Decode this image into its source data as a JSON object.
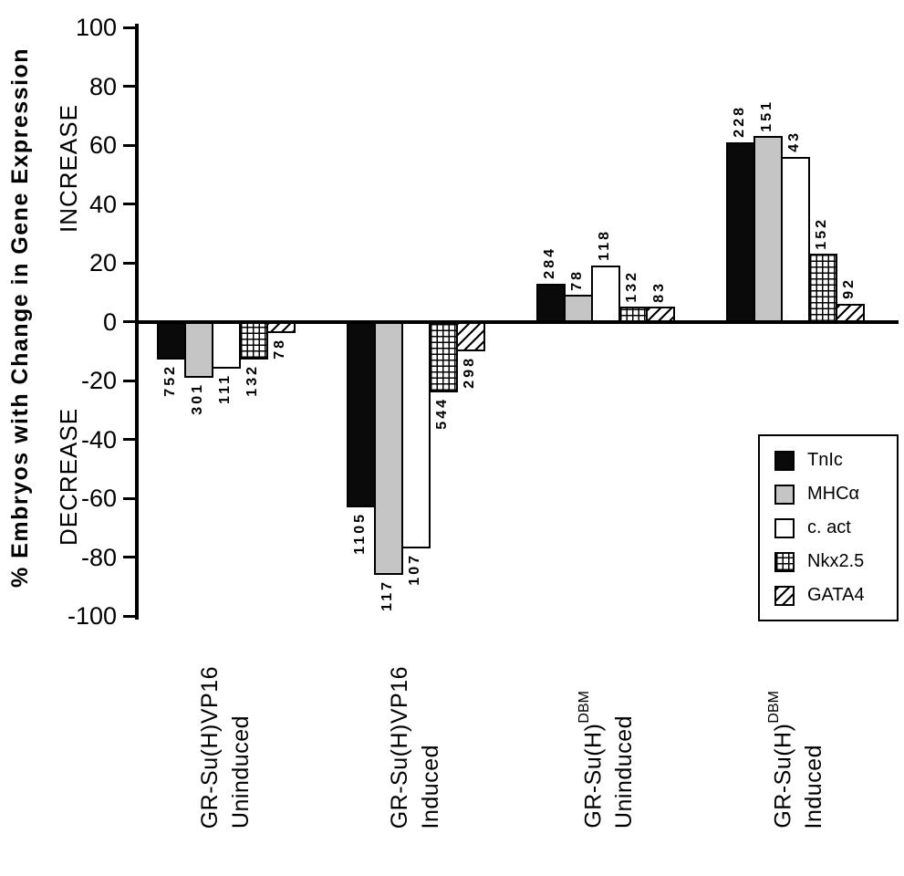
{
  "chart_data": {
    "type": "bar",
    "title": "",
    "ylabel": "% Embryos with Change in Gene Expression",
    "increase_label": "INCREASE",
    "decrease_label": "DECREASE",
    "xlabel": "",
    "ylim": [
      -100,
      100
    ],
    "y_ticks": [
      100,
      80,
      60,
      40,
      20,
      0,
      -20,
      -40,
      -60,
      -80,
      -100
    ],
    "grid": false,
    "legend_position": "middle-right",
    "series": [
      {
        "key": "tnic",
        "name": "TnIc",
        "fill": "black"
      },
      {
        "key": "mhc-alpha",
        "name": "MHCα",
        "fill": "gray"
      },
      {
        "key": "c-act",
        "name": "c. act",
        "fill": "white"
      },
      {
        "key": "nkx2-5",
        "name": "Nkx2.5",
        "fill": "grid"
      },
      {
        "key": "gata4",
        "name": "GATA4",
        "fill": "diag"
      }
    ],
    "groups": [
      {
        "name_base": "GR-Su(H)VP16",
        "name_sup": "",
        "condition": "Uninduced",
        "values": [
          -13,
          -19,
          -16,
          -13,
          -4
        ],
        "n_labels": [
          "752",
          "301",
          "111",
          "132",
          "78"
        ]
      },
      {
        "name_base": "GR-Su(H)VP16",
        "name_sup": "",
        "condition": "Induced",
        "values": [
          -63,
          -86,
          -77,
          -24,
          -10
        ],
        "n_labels": [
          "1105",
          "117",
          "107",
          "544",
          "298"
        ]
      },
      {
        "name_base": "GR-Su(H)",
        "name_sup": "DBM",
        "condition": "Uninduced",
        "values": [
          13,
          9,
          19,
          5,
          5
        ],
        "n_labels": [
          "284",
          "78",
          "118",
          "132",
          "83"
        ]
      },
      {
        "name_base": "GR-Su(H)",
        "name_sup": "DBM",
        "condition": "Induced",
        "values": [
          61,
          63,
          56,
          23,
          6
        ],
        "n_labels": [
          "228",
          "151",
          "43",
          "152",
          "92"
        ]
      }
    ],
    "colors": {
      "bar_black": "#0a0a0a",
      "bar_gray": "#c5c5c5",
      "bar_white": "#ffffff",
      "axis": "#000000"
    }
  },
  "legend": {
    "items": [
      {
        "label": "TnIc",
        "fill": "black"
      },
      {
        "label": "MHCα",
        "fill": "gray"
      },
      {
        "label": "c. act",
        "fill": "white"
      },
      {
        "label": "Nkx2.5",
        "fill": "grid"
      },
      {
        "label": "GATA4",
        "fill": "diag"
      }
    ]
  }
}
